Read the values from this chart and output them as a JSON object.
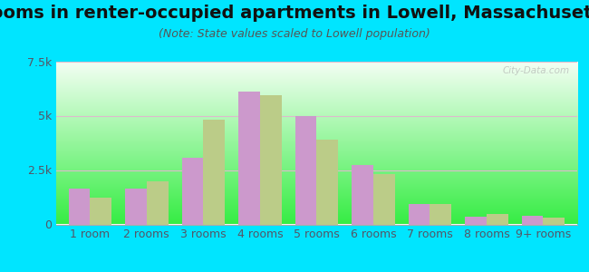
{
  "title": "Rooms in renter-occupied apartments in Lowell, Massachusetts",
  "subtitle": "(Note: State values scaled to Lowell population)",
  "categories": [
    "1 room",
    "2 rooms",
    "3 rooms",
    "4 rooms",
    "5 rooms",
    "6 rooms",
    "7 rooms",
    "8 rooms",
    "9+ rooms"
  ],
  "lowell_values": [
    1650,
    1650,
    3050,
    6100,
    5000,
    2750,
    950,
    350,
    380
  ],
  "massachusetts_values": [
    1250,
    2000,
    4800,
    5950,
    3900,
    2300,
    950,
    500,
    330
  ],
  "lowell_color": "#cc99cc",
  "massachusetts_color": "#bbcc88",
  "background_color": "#00e5ff",
  "ylim": [
    0,
    7500
  ],
  "yticks": [
    0,
    2500,
    5000,
    7500
  ],
  "ytick_labels": [
    "0",
    "2.5k",
    "5k",
    "7.5k"
  ],
  "bar_width": 0.38,
  "title_fontsize": 14,
  "subtitle_fontsize": 9,
  "tick_fontsize": 9,
  "legend_fontsize": 10,
  "grid_color": "#ccddcc",
  "plot_bg_color": "#e8f5e0"
}
